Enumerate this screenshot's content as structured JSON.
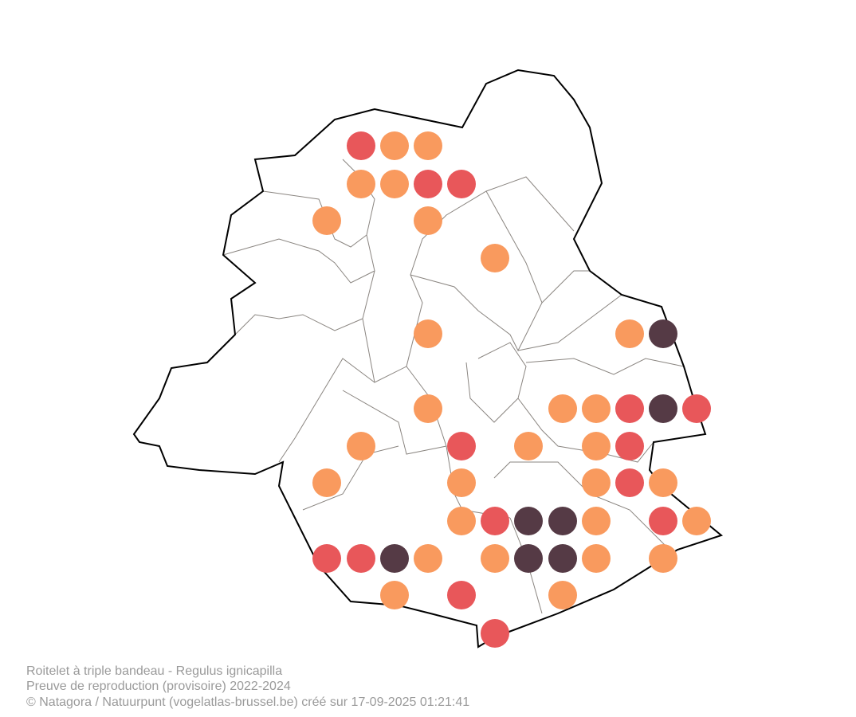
{
  "caption": {
    "lines": [
      "Roitelet à triple bandeau - Regulus ignicapilla",
      "Preuve de reproduction (provisoire) 2022-2024",
      "© Natagora / Natuurpunt (vogelatlas-brussel.be) créé sur 17-09-2025 01:21:41"
    ]
  }
}
